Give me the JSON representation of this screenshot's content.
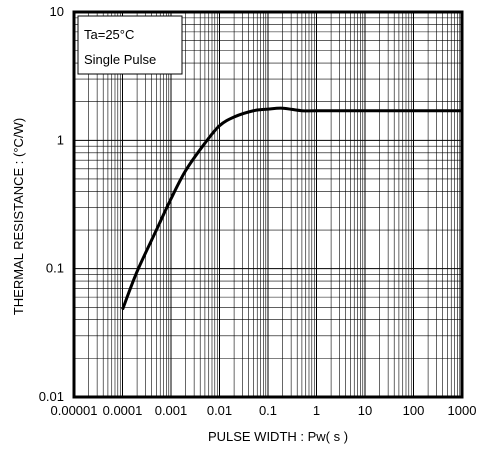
{
  "chart_data": {
    "type": "line",
    "title": "",
    "xlabel": "PULSE WIDTH : Pw( s )",
    "ylabel": "THERMAL RESISTANCE : (°C/W)",
    "x_scale": "log",
    "y_scale": "log",
    "xlim": [
      1e-05,
      1000
    ],
    "ylim": [
      0.01,
      10
    ],
    "x_tick_labels": [
      "0.00001",
      "0.0001",
      "0.001",
      "0.01",
      "0.1",
      "1",
      "10",
      "100",
      "1000"
    ],
    "y_tick_labels": [
      "0.01",
      "0.1",
      "1",
      "10"
    ],
    "grid": true,
    "annotation": [
      "Ta=25°C",
      "Single Pulse"
    ],
    "series": [
      {
        "x": [
          0.0001,
          0.0002,
          0.0005,
          0.001,
          0.002,
          0.005,
          0.01,
          0.02,
          0.05,
          0.1,
          0.2,
          0.5,
          1,
          10,
          100,
          1000
        ],
        "y": [
          0.048,
          0.095,
          0.2,
          0.35,
          0.58,
          0.95,
          1.3,
          1.52,
          1.7,
          1.75,
          1.78,
          1.7,
          1.7,
          1.7,
          1.7,
          1.7
        ]
      }
    ]
  },
  "colors": {
    "line": "#000000",
    "grid": "#000000",
    "frame": "#000000"
  }
}
